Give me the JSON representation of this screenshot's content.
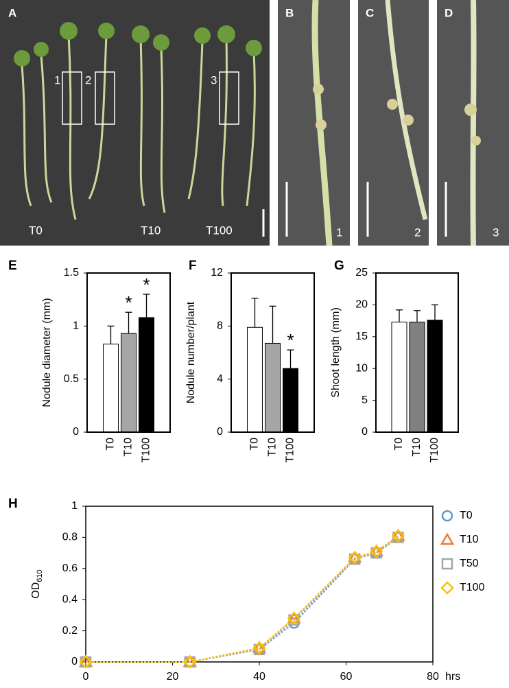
{
  "photos": {
    "A": {
      "label": "A",
      "groups": [
        "T0",
        "T10",
        "T100"
      ],
      "boxes": [
        "1",
        "2",
        "3"
      ]
    },
    "B": {
      "label": "B",
      "number": "1"
    },
    "C": {
      "label": "C",
      "number": "2"
    },
    "D": {
      "label": "D",
      "number": "3"
    }
  },
  "chart_data": [
    {
      "type": "bar",
      "panel": "E",
      "ylabel": "Nodule diameter (mm)",
      "categories": [
        "T0",
        "T10",
        "T100"
      ],
      "values": [
        0.83,
        0.93,
        1.08
      ],
      "errors": [
        0.17,
        0.2,
        0.22
      ],
      "colors": [
        "#ffffff",
        "#a6a6a6",
        "#000000"
      ],
      "significance": [
        null,
        "*",
        "*"
      ],
      "ylim": [
        0,
        1.5
      ],
      "yticks": [
        0,
        0.5,
        1,
        1.5
      ]
    },
    {
      "type": "bar",
      "panel": "F",
      "ylabel": "Nodule number/plant",
      "categories": [
        "T0",
        "T10",
        "T100"
      ],
      "values": [
        7.9,
        6.7,
        4.8
      ],
      "errors": [
        2.2,
        2.8,
        1.4
      ],
      "colors": [
        "#ffffff",
        "#a6a6a6",
        "#000000"
      ],
      "significance": [
        null,
        null,
        "*"
      ],
      "ylim": [
        0,
        12
      ],
      "yticks": [
        0,
        4,
        8,
        12
      ]
    },
    {
      "type": "bar",
      "panel": "G",
      "ylabel": "Shoot length (mm)",
      "categories": [
        "T0",
        "T10",
        "T100"
      ],
      "values": [
        17.3,
        17.3,
        17.6
      ],
      "errors": [
        1.9,
        1.8,
        2.4
      ],
      "colors": [
        "#ffffff",
        "#808080",
        "#000000"
      ],
      "significance": [
        null,
        null,
        null
      ],
      "ylim": [
        0,
        25
      ],
      "yticks": [
        0,
        5,
        10,
        15,
        20,
        25
      ]
    },
    {
      "type": "line",
      "panel": "H",
      "xlabel": "hrs",
      "ylabel": "OD",
      "ylabel_sub": "610",
      "x": [
        0,
        24,
        40,
        48,
        62,
        67,
        72
      ],
      "xlim": [
        0,
        80
      ],
      "xticks": [
        0,
        20,
        40,
        60,
        80
      ],
      "ylim": [
        0,
        1
      ],
      "yticks": [
        0,
        0.2,
        0.4,
        0.6,
        0.8,
        1
      ],
      "series": [
        {
          "name": "T0",
          "color": "#5b9bd5",
          "marker": "circle",
          "values": [
            0,
            0,
            0.08,
            0.25,
            0.66,
            0.7,
            0.8
          ]
        },
        {
          "name": "T10",
          "color": "#ed7d31",
          "marker": "triangle",
          "values": [
            0,
            0,
            0.09,
            0.28,
            0.67,
            0.71,
            0.81
          ]
        },
        {
          "name": "T50",
          "color": "#a5a5a5",
          "marker": "square",
          "values": [
            0,
            0,
            0.08,
            0.27,
            0.66,
            0.7,
            0.8
          ]
        },
        {
          "name": "T100",
          "color": "#ffc000",
          "marker": "diamond",
          "values": [
            0,
            0,
            0.09,
            0.28,
            0.67,
            0.71,
            0.81
          ]
        }
      ]
    }
  ]
}
